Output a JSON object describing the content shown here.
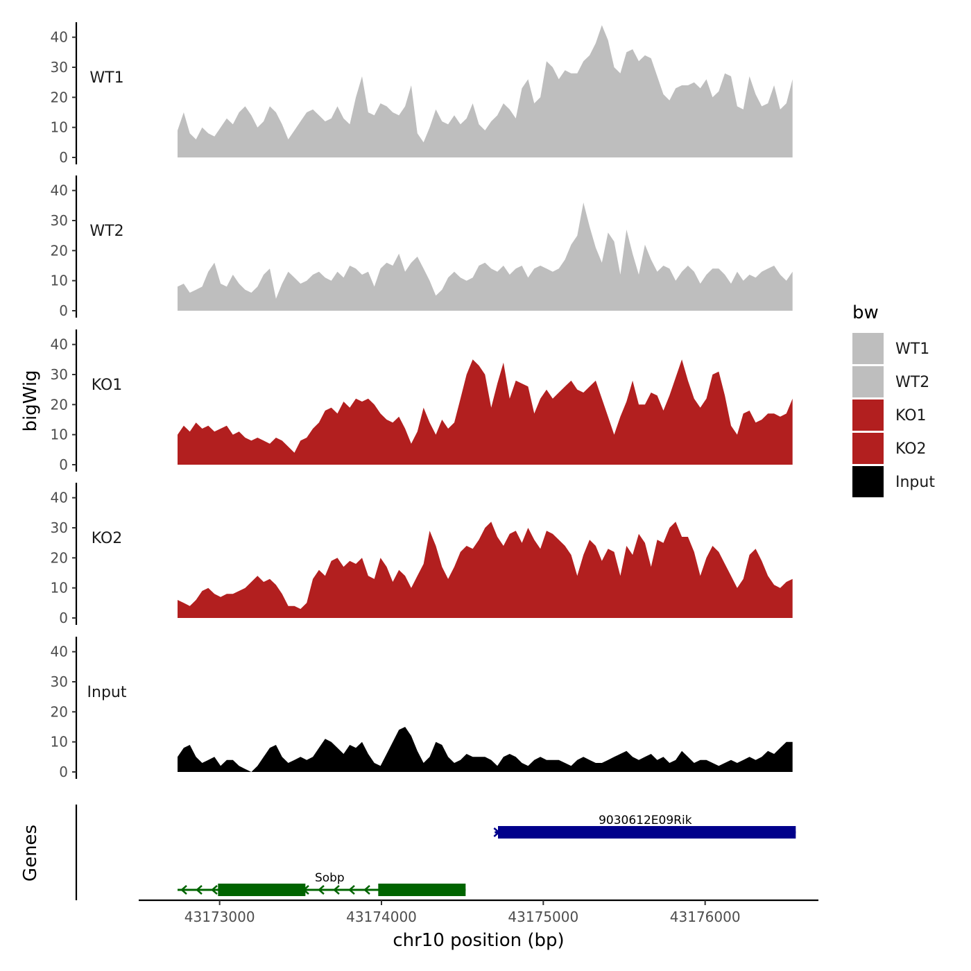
{
  "chart_data": {
    "type": "area",
    "ylabel": "bigWig",
    "xlabel": "chr10 position (bp)",
    "genes_label": "Genes",
    "x_domain": [
      43172500,
      43176700
    ],
    "data_range": [
      43172740,
      43176540
    ],
    "ylim": [
      0,
      45
    ],
    "y_ticks": [
      0,
      10,
      20,
      30,
      40
    ],
    "x_ticks": [
      43173000,
      43174000,
      43175000,
      43176000
    ],
    "x_tick_labels": [
      "43173000",
      "43174000",
      "43175000",
      "43176000"
    ],
    "legend": {
      "title": "bw",
      "entries": [
        {
          "label": "WT1",
          "color": "#bebebe"
        },
        {
          "label": "WT2",
          "color": "#bebebe"
        },
        {
          "label": "KO1",
          "color": "#b21f1f"
        },
        {
          "label": "KO2",
          "color": "#b21f1f"
        },
        {
          "label": "Input",
          "color": "#000000"
        }
      ]
    },
    "series": [
      {
        "name": "WT1",
        "color": "#bebebe",
        "values": [
          9,
          15,
          8,
          6,
          10,
          8,
          7,
          10,
          13,
          11,
          15,
          17,
          14,
          10,
          12,
          17,
          15,
          11,
          6,
          9,
          12,
          15,
          16,
          14,
          12,
          13,
          17,
          13,
          11,
          20,
          27,
          15,
          14,
          18,
          17,
          15,
          14,
          17,
          24,
          8,
          5,
          10,
          16,
          12,
          11,
          14,
          11,
          13,
          18,
          11,
          9,
          12,
          14,
          18,
          16,
          13,
          23,
          26,
          18,
          20,
          32,
          30,
          26,
          29,
          28,
          28,
          32,
          34,
          38,
          44,
          39,
          30,
          28,
          35,
          36,
          32,
          34,
          33,
          27,
          21,
          19,
          23,
          24,
          24,
          25,
          23,
          26,
          20,
          22,
          28,
          27,
          17,
          16,
          27,
          21,
          17,
          18,
          24,
          16,
          18,
          26
        ]
      },
      {
        "name": "WT2",
        "color": "#bebebe",
        "values": [
          8,
          9,
          6,
          7,
          8,
          13,
          16,
          9,
          8,
          12,
          9,
          7,
          6,
          8,
          12,
          14,
          4,
          9,
          13,
          11,
          9,
          10,
          12,
          13,
          11,
          10,
          13,
          11,
          15,
          14,
          12,
          13,
          8,
          14,
          16,
          15,
          19,
          13,
          16,
          18,
          14,
          10,
          5,
          7,
          11,
          13,
          11,
          10,
          11,
          15,
          16,
          14,
          13,
          15,
          12,
          14,
          15,
          11,
          14,
          15,
          14,
          13,
          14,
          17,
          22,
          25,
          36,
          28,
          21,
          16,
          26,
          23,
          12,
          27,
          19,
          12,
          22,
          17,
          13,
          15,
          14,
          10,
          13,
          15,
          13,
          9,
          12,
          14,
          14,
          12,
          9,
          13,
          10,
          12,
          11,
          13,
          14,
          15,
          12,
          10,
          13
        ]
      },
      {
        "name": "KO1",
        "color": "#b21f1f",
        "values": [
          10,
          13,
          11,
          14,
          12,
          13,
          11,
          12,
          13,
          10,
          11,
          9,
          8,
          9,
          8,
          7,
          9,
          8,
          6,
          4,
          8,
          9,
          12,
          14,
          18,
          19,
          17,
          21,
          19,
          22,
          21,
          22,
          20,
          17,
          15,
          14,
          16,
          12,
          7,
          11,
          19,
          14,
          10,
          15,
          12,
          14,
          22,
          30,
          35,
          33,
          30,
          19,
          27,
          34,
          22,
          28,
          27,
          26,
          17,
          22,
          25,
          22,
          24,
          26,
          28,
          25,
          24,
          26,
          28,
          22,
          16,
          10,
          16,
          21,
          28,
          20,
          20,
          24,
          23,
          18,
          23,
          29,
          35,
          28,
          22,
          19,
          22,
          30,
          31,
          23,
          13,
          10,
          17,
          18,
          14,
          15,
          17,
          17,
          16,
          17,
          22
        ]
      },
      {
        "name": "KO2",
        "color": "#b21f1f",
        "values": [
          6,
          5,
          4,
          6,
          9,
          10,
          8,
          7,
          8,
          8,
          9,
          10,
          12,
          14,
          12,
          13,
          11,
          8,
          4,
          4,
          3,
          5,
          13,
          16,
          14,
          19,
          20,
          17,
          19,
          18,
          20,
          14,
          13,
          20,
          17,
          12,
          16,
          14,
          10,
          14,
          18,
          29,
          24,
          17,
          13,
          17,
          22,
          24,
          23,
          26,
          30,
          32,
          27,
          24,
          28,
          29,
          25,
          30,
          26,
          23,
          29,
          28,
          26,
          24,
          21,
          14,
          21,
          26,
          24,
          19,
          23,
          22,
          14,
          24,
          21,
          28,
          25,
          17,
          26,
          25,
          30,
          32,
          27,
          27,
          22,
          14,
          20,
          24,
          22,
          18,
          14,
          10,
          13,
          21,
          23,
          19,
          14,
          11,
          10,
          12,
          13
        ]
      },
      {
        "name": "Input",
        "color": "#000000",
        "values": [
          5,
          8,
          9,
          5,
          3,
          4,
          5,
          2,
          4,
          4,
          2,
          1,
          0,
          2,
          5,
          8,
          9,
          5,
          3,
          4,
          5,
          4,
          5,
          8,
          11,
          10,
          8,
          6,
          9,
          8,
          10,
          6,
          3,
          2,
          6,
          10,
          14,
          15,
          12,
          7,
          3,
          5,
          10,
          9,
          5,
          3,
          4,
          6,
          5,
          5,
          5,
          4,
          2,
          5,
          6,
          5,
          3,
          2,
          4,
          5,
          4,
          4,
          4,
          3,
          2,
          4,
          5,
          4,
          3,
          3,
          4,
          5,
          6,
          7,
          5,
          4,
          5,
          6,
          4,
          5,
          3,
          4,
          7,
          5,
          3,
          4,
          4,
          3,
          2,
          3,
          4,
          3,
          4,
          5,
          4,
          5,
          7,
          6,
          8,
          10,
          10
        ]
      }
    ],
    "genes": [
      {
        "name": "Sobp",
        "strand": "-",
        "color": "#006400",
        "start": 43172740,
        "end": 43174520,
        "exons": [
          [
            43172990,
            43173530
          ],
          [
            43173980,
            43174520
          ]
        ]
      },
      {
        "name": "9030612E09Rik",
        "strand": "+",
        "color": "#00008b",
        "start": 43174700,
        "end": 43176560,
        "exons": [
          [
            43174720,
            43176560
          ]
        ]
      }
    ]
  }
}
